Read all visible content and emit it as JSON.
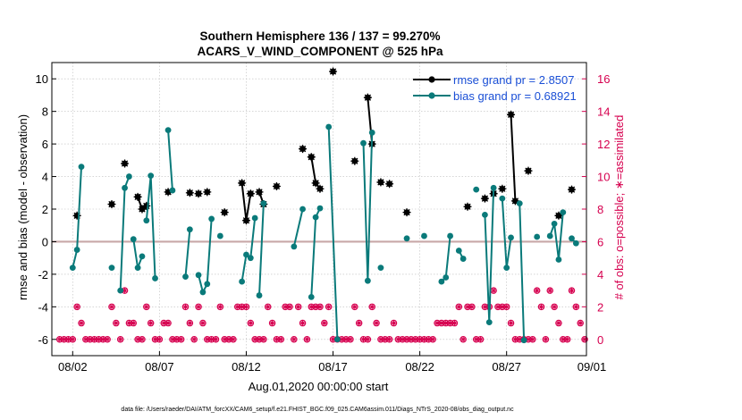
{
  "chart_data": {
    "type": "line",
    "title_line1": "Southern Hemisphere 136 / 137 = 99.270%",
    "title_line2": "ACARS_V_WIND_COMPONENT @ 525 hPa",
    "xlabel": "Aug.01,2020 00:00:00 start",
    "ylabel_left": "rmse and bias (model - observation)",
    "ylabel_right": "# of obs: o=possible; ∗=assimilated",
    "xlim": [
      0.8,
      31.6
    ],
    "ylim_left": [
      -7,
      11
    ],
    "ylim_right": [
      -1,
      17
    ],
    "x_ticks": [
      {
        "x": 2,
        "label": "08/02"
      },
      {
        "x": 7,
        "label": "08/07"
      },
      {
        "x": 12,
        "label": "08/12"
      },
      {
        "x": 17,
        "label": "08/17"
      },
      {
        "x": 22,
        "label": "08/22"
      },
      {
        "x": 27,
        "label": "08/27"
      },
      {
        "x": 32,
        "label": "09/01"
      }
    ],
    "y_ticks_left": [
      -6,
      -4,
      -2,
      0,
      2,
      4,
      6,
      8,
      10
    ],
    "y_ticks_right": [
      0,
      2,
      4,
      6,
      8,
      10,
      12,
      14,
      16
    ],
    "legend": [
      {
        "label": "rmse grand pr = 2.8507",
        "color": "#000000"
      },
      {
        "label": "bias grand pr = 0.68921",
        "color": "#0a7a7a"
      }
    ],
    "colors": {
      "rmse": "#000000",
      "bias": "#0a7a7a",
      "obs": "#d6004f",
      "zero_line": "#c8a8a8"
    },
    "rmse_segments": [
      [
        [
          2.25,
          1.6
        ]
      ],
      [
        [
          4.25,
          2.3
        ]
      ],
      [
        [
          5.0,
          4.8
        ]
      ],
      [
        [
          5.75,
          2.75
        ],
        [
          6.0,
          2.0
        ]
      ],
      [
        [
          6.25,
          2.2
        ]
      ],
      [
        [
          7.5,
          3.05
        ]
      ],
      [
        [
          8.75,
          3.0
        ]
      ],
      [
        [
          9.25,
          2.95
        ]
      ],
      [
        [
          9.75,
          3.05
        ]
      ],
      [
        [
          10.75,
          1.8
        ]
      ],
      [
        [
          11.75,
          3.6
        ],
        [
          12.0,
          1.3
        ],
        [
          12.25,
          2.95
        ]
      ],
      [
        [
          12.75,
          3.05
        ],
        [
          13.0,
          2.3
        ]
      ],
      [
        [
          13.75,
          3.4
        ]
      ],
      [
        [
          15.25,
          5.7
        ]
      ],
      [
        [
          15.75,
          5.2
        ],
        [
          16.0,
          3.6
        ],
        [
          16.25,
          3.25
        ]
      ],
      [
        [
          17.0,
          10.45
        ]
      ],
      [
        [
          18.25,
          4.95
        ]
      ],
      [
        [
          19.0,
          8.85
        ],
        [
          19.25,
          6.0
        ]
      ],
      [
        [
          19.75,
          3.65
        ]
      ],
      [
        [
          20.25,
          3.55
        ]
      ],
      [
        [
          21.25,
          1.8
        ]
      ],
      [
        [
          24.75,
          2.15
        ]
      ],
      [
        [
          25.75,
          2.65
        ]
      ],
      [
        [
          26.25,
          2.95
        ]
      ],
      [
        [
          26.75,
          3.25
        ]
      ],
      [
        [
          27.25,
          7.8
        ],
        [
          27.5,
          2.5
        ]
      ],
      [
        [
          28.25,
          4.35
        ]
      ],
      [
        [
          30.0,
          1.6
        ]
      ],
      [
        [
          30.75,
          3.2
        ]
      ]
    ],
    "bias_segments": [
      [
        [
          2.0,
          -1.6
        ],
        [
          2.25,
          -0.5
        ],
        [
          2.5,
          4.6
        ]
      ],
      [
        [
          4.25,
          -1.6
        ]
      ],
      [
        [
          4.75,
          -3.0
        ],
        [
          5.0,
          3.3
        ],
        [
          5.25,
          4.0
        ]
      ],
      [
        [
          5.5,
          0.15
        ],
        [
          5.75,
          -1.6
        ],
        [
          6.0,
          -0.9
        ]
      ],
      [
        [
          6.25,
          1.3
        ],
        [
          6.5,
          4.05
        ],
        [
          6.75,
          -2.25
        ]
      ],
      [
        [
          7.5,
          6.85
        ],
        [
          7.75,
          3.15
        ]
      ],
      [
        [
          8.5,
          -2.15
        ],
        [
          8.75,
          0.75
        ]
      ],
      [
        [
          9.25,
          -2.05
        ],
        [
          9.5,
          -3.1
        ],
        [
          9.75,
          -2.6
        ],
        [
          10.0,
          1.4
        ]
      ],
      [
        [
          10.5,
          0.35
        ]
      ],
      [
        [
          11.75,
          -2.45
        ],
        [
          12.0,
          -0.8
        ],
        [
          12.25,
          -1.0
        ],
        [
          12.5,
          1.45
        ]
      ],
      [
        [
          12.75,
          -3.3
        ],
        [
          13.0,
          2.35
        ]
      ],
      [
        [
          14.75,
          -0.3
        ],
        [
          15.25,
          2.0
        ]
      ],
      [
        [
          15.75,
          -3.4
        ],
        [
          16.0,
          1.5
        ],
        [
          16.25,
          2.05
        ]
      ],
      [
        [
          16.75,
          7.05
        ],
        [
          17.25,
          -6.0
        ]
      ],
      [
        [
          18.75,
          6.05
        ],
        [
          19.0,
          -2.4
        ],
        [
          19.25,
          6.7
        ]
      ],
      [
        [
          19.75,
          -1.6
        ]
      ],
      [
        [
          21.25,
          0.2
        ]
      ],
      [
        [
          22.25,
          0.35
        ]
      ],
      [
        [
          23.25,
          -2.45
        ],
        [
          23.5,
          -2.2
        ],
        [
          23.75,
          0.35
        ]
      ],
      [
        [
          24.25,
          -0.55
        ],
        [
          24.5,
          -1.05
        ]
      ],
      [
        [
          25.25,
          3.2
        ]
      ],
      [
        [
          25.75,
          1.65
        ],
        [
          26.0,
          -4.95
        ],
        [
          26.25,
          3.3
        ]
      ],
      [
        [
          26.75,
          2.65
        ],
        [
          27.0,
          -1.6
        ],
        [
          27.25,
          0.25
        ]
      ],
      [
        [
          27.75,
          2.35
        ],
        [
          28.0,
          -6.05
        ]
      ],
      [
        [
          28.75,
          0.3
        ]
      ],
      [
        [
          29.5,
          0.35
        ],
        [
          29.75,
          1.1
        ],
        [
          30.0,
          -1.1
        ],
        [
          30.25,
          1.8
        ]
      ],
      [
        [
          30.75,
          0.2
        ],
        [
          31.0,
          -0.1
        ]
      ]
    ],
    "obs_counts": [
      [
        1.25,
        0
      ],
      [
        1.5,
        0
      ],
      [
        1.75,
        0
      ],
      [
        2.0,
        0
      ],
      [
        2.25,
        2
      ],
      [
        2.5,
        1
      ],
      [
        2.75,
        0
      ],
      [
        3.0,
        0
      ],
      [
        3.25,
        0
      ],
      [
        3.5,
        0
      ],
      [
        3.75,
        0
      ],
      [
        4.0,
        0
      ],
      [
        4.25,
        2
      ],
      [
        4.5,
        1
      ],
      [
        4.75,
        0
      ],
      [
        5.0,
        3
      ],
      [
        5.25,
        1
      ],
      [
        5.5,
        1
      ],
      [
        5.75,
        0
      ],
      [
        6.0,
        0
      ],
      [
        6.25,
        2
      ],
      [
        6.5,
        1
      ],
      [
        6.75,
        0
      ],
      [
        7.0,
        0
      ],
      [
        7.25,
        1
      ],
      [
        7.5,
        1
      ],
      [
        7.75,
        0
      ],
      [
        8.0,
        0
      ],
      [
        8.25,
        0
      ],
      [
        8.5,
        2
      ],
      [
        8.75,
        1
      ],
      [
        9.0,
        0
      ],
      [
        9.25,
        2
      ],
      [
        9.5,
        1
      ],
      [
        9.75,
        0
      ],
      [
        10.0,
        0
      ],
      [
        10.25,
        0
      ],
      [
        10.5,
        2
      ],
      [
        10.75,
        0
      ],
      [
        11.0,
        0
      ],
      [
        11.25,
        0
      ],
      [
        11.5,
        2
      ],
      [
        11.75,
        2
      ],
      [
        12.0,
        2
      ],
      [
        12.25,
        1
      ],
      [
        12.5,
        0
      ],
      [
        12.75,
        0
      ],
      [
        13.0,
        0
      ],
      [
        13.25,
        2
      ],
      [
        13.5,
        1
      ],
      [
        13.75,
        0
      ],
      [
        14.0,
        0
      ],
      [
        14.25,
        2
      ],
      [
        14.5,
        2
      ],
      [
        14.75,
        0
      ],
      [
        15.0,
        2
      ],
      [
        15.25,
        1
      ],
      [
        15.5,
        0
      ],
      [
        15.75,
        2
      ],
      [
        16.0,
        2
      ],
      [
        16.25,
        2
      ],
      [
        16.5,
        1
      ],
      [
        16.75,
        2
      ],
      [
        17.0,
        0
      ],
      [
        17.25,
        0
      ],
      [
        17.5,
        0
      ],
      [
        17.75,
        0
      ],
      [
        18.0,
        0
      ],
      [
        18.25,
        2
      ],
      [
        18.5,
        1
      ],
      [
        18.75,
        0
      ],
      [
        19.0,
        0
      ],
      [
        19.25,
        2
      ],
      [
        19.5,
        1
      ],
      [
        19.75,
        0
      ],
      [
        20.0,
        0
      ],
      [
        20.25,
        0
      ],
      [
        20.5,
        1
      ],
      [
        20.75,
        0
      ],
      [
        21.0,
        0
      ],
      [
        21.25,
        0
      ],
      [
        21.5,
        0
      ],
      [
        21.75,
        0
      ],
      [
        22.0,
        0
      ],
      [
        22.25,
        0
      ],
      [
        22.5,
        0
      ],
      [
        22.75,
        0
      ],
      [
        23.0,
        1
      ],
      [
        23.25,
        1
      ],
      [
        23.5,
        1
      ],
      [
        23.75,
        1
      ],
      [
        24.0,
        1
      ],
      [
        24.25,
        2
      ],
      [
        24.5,
        0
      ],
      [
        24.75,
        2
      ],
      [
        25.0,
        2
      ],
      [
        25.25,
        0
      ],
      [
        25.5,
        0
      ],
      [
        25.75,
        2
      ],
      [
        26.0,
        2
      ],
      [
        26.25,
        3
      ],
      [
        26.5,
        2
      ],
      [
        26.75,
        2
      ],
      [
        27.0,
        2
      ],
      [
        27.25,
        1
      ],
      [
        27.5,
        0
      ],
      [
        27.75,
        0
      ],
      [
        28.0,
        0
      ],
      [
        28.25,
        0
      ],
      [
        28.5,
        0
      ],
      [
        28.75,
        3
      ],
      [
        29.0,
        2
      ],
      [
        29.25,
        0
      ],
      [
        29.5,
        3
      ],
      [
        29.75,
        2
      ],
      [
        30.0,
        1
      ],
      [
        30.25,
        0
      ],
      [
        30.5,
        0
      ],
      [
        30.75,
        3
      ],
      [
        31.0,
        2
      ],
      [
        31.25,
        1
      ],
      [
        31.5,
        0
      ]
    ]
  },
  "footer_text": "data file: /Users/raeder/DAI/ATM_forcXX/CAM6_setup/f.e21.FHIST_BGC.f09_025.CAM6assim.011/Diags_NTrS_2020-08/obs_diag_output.nc"
}
